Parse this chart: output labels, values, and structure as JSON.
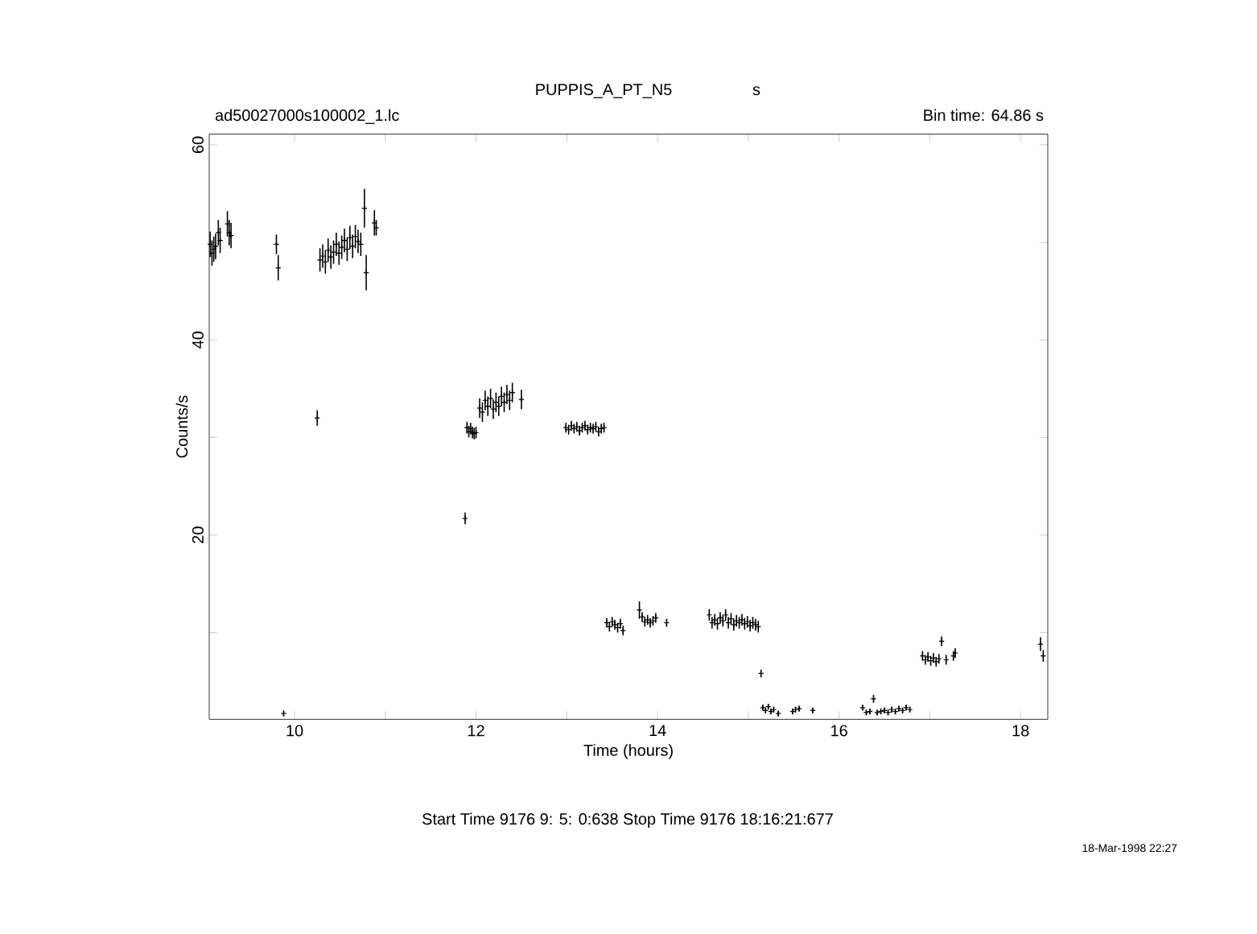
{
  "chart_data": {
    "type": "scatter",
    "title": "PUPPIS_A_PT_N5",
    "xlabel": "Time (hours)",
    "ylabel": "Counts/s",
    "annotations": [
      "ad50027000s100002_1.lc",
      "s",
      "Bin time:    64.86    s",
      "Start Time  9176  9: 5: 0:638    Stop Time  9176 18:16:21:677",
      "18-Mar-1998 22:27"
    ],
    "marker": "cross",
    "color": "#000000",
    "xlim": [
      9.06,
      18.3
    ],
    "ylim": [
      1.1,
      61.1
    ],
    "xticks": [
      10,
      {
        "value": 11,
        "label": null
      },
      12,
      {
        "value": 13,
        "label": null
      },
      14,
      {
        "value": 15,
        "label": null
      },
      16,
      {
        "value": 17,
        "label": null
      },
      18
    ],
    "yticks": [
      {
        "value": 10,
        "label": null
      },
      20,
      {
        "value": 30,
        "label": null
      },
      40,
      {
        "value": 50,
        "label": null
      },
      60
    ],
    "x": [
      9.07,
      9.09,
      9.11,
      9.13,
      9.16,
      9.18,
      9.26,
      9.28,
      9.3,
      9.8,
      9.82,
      9.88,
      10.25,
      10.28,
      10.31,
      10.34,
      10.37,
      10.4,
      10.43,
      10.46,
      10.49,
      10.52,
      10.55,
      10.58,
      10.61,
      10.64,
      10.67,
      10.7,
      10.73,
      10.77,
      10.79,
      10.88,
      10.9,
      11.88,
      11.9,
      11.92,
      11.94,
      11.96,
      11.98,
      12.0,
      12.04,
      12.07,
      12.1,
      12.13,
      12.16,
      12.19,
      12.22,
      12.25,
      12.28,
      12.31,
      12.34,
      12.37,
      12.4,
      12.5,
      12.99,
      13.02,
      13.05,
      13.08,
      13.11,
      13.14,
      13.17,
      13.2,
      13.23,
      13.26,
      13.29,
      13.32,
      13.35,
      13.38,
      13.41,
      13.44,
      13.47,
      13.5,
      13.53,
      13.56,
      13.59,
      13.62,
      13.8,
      13.83,
      13.86,
      13.89,
      13.92,
      13.95,
      13.98,
      14.1,
      14.57,
      14.6,
      14.63,
      14.66,
      14.69,
      14.72,
      14.75,
      14.78,
      14.81,
      14.84,
      14.87,
      14.9,
      14.93,
      14.96,
      14.99,
      15.02,
      15.05,
      15.08,
      15.11,
      15.14,
      15.16,
      15.19,
      15.22,
      15.25,
      15.28,
      15.33,
      15.49,
      15.52,
      15.56,
      15.71,
      16.26,
      16.3,
      16.34,
      16.38,
      16.42,
      16.46,
      16.5,
      16.54,
      16.58,
      16.62,
      16.66,
      16.7,
      16.74,
      16.78,
      16.92,
      16.95,
      16.98,
      17.01,
      17.04,
      17.07,
      17.1,
      17.13,
      17.18,
      17.26,
      17.28,
      18.22,
      18.25
    ],
    "values": [
      49.8,
      48.9,
      49.3,
      49.6,
      51.0,
      50.2,
      51.9,
      51.0,
      50.7,
      49.8,
      47.4,
      1.7,
      32.0,
      48.2,
      48.6,
      48.0,
      49.2,
      48.5,
      49.0,
      49.8,
      48.9,
      49.5,
      50.2,
      49.3,
      50.5,
      49.6,
      50.6,
      50.1,
      49.8,
      53.5,
      46.9,
      52.0,
      51.5,
      21.7,
      31.0,
      30.6,
      30.9,
      30.5,
      30.4,
      30.5,
      33.0,
      32.6,
      33.8,
      33.2,
      34.0,
      32.9,
      33.6,
      33.2,
      34.2,
      33.6,
      34.4,
      33.8,
      34.6,
      33.9,
      31.0,
      30.8,
      31.2,
      30.9,
      31.1,
      30.7,
      31.0,
      31.2,
      30.8,
      31.0,
      30.9,
      31.1,
      30.6,
      30.9,
      31.0,
      11.0,
      10.6,
      11.1,
      10.8,
      10.5,
      10.9,
      10.2,
      12.3,
      11.6,
      11.1,
      11.3,
      11.0,
      11.2,
      11.5,
      11.0,
      11.8,
      11.0,
      11.3,
      10.9,
      11.5,
      11.2,
      11.8,
      11.0,
      11.4,
      10.8,
      11.2,
      11.0,
      11.3,
      10.9,
      11.1,
      10.7,
      11.0,
      10.8,
      10.6,
      5.8,
      2.3,
      2.0,
      2.4,
      1.9,
      2.1,
      1.7,
      1.9,
      2.1,
      2.2,
      2.0,
      2.3,
      1.8,
      1.9,
      3.2,
      1.8,
      1.9,
      2.0,
      1.8,
      2.1,
      1.9,
      2.2,
      2.0,
      2.3,
      2.1,
      7.6,
      7.2,
      7.5,
      7.1,
      7.4,
      7.0,
      7.3,
      9.1,
      7.2,
      7.6,
      7.9,
      8.8,
      7.6
    ],
    "errors": [
      1.3,
      1.3,
      1.3,
      1.3,
      1.3,
      1.3,
      1.3,
      1.3,
      1.3,
      1.0,
      1.3,
      0.3,
      0.8,
      1.2,
      1.2,
      1.2,
      1.2,
      1.2,
      1.2,
      1.2,
      1.2,
      1.2,
      1.2,
      1.2,
      1.2,
      1.2,
      1.2,
      1.2,
      1.2,
      2.0,
      1.8,
      1.3,
      0.8,
      0.6,
      0.6,
      0.6,
      0.6,
      0.6,
      0.6,
      0.6,
      1.0,
      1.0,
      1.0,
      1.0,
      1.0,
      1.0,
      1.0,
      1.0,
      1.0,
      1.0,
      1.0,
      1.0,
      1.0,
      1.0,
      0.5,
      0.5,
      0.5,
      0.5,
      0.5,
      0.5,
      0.5,
      0.5,
      0.5,
      0.5,
      0.5,
      0.5,
      0.5,
      0.5,
      0.5,
      0.5,
      0.5,
      0.5,
      0.5,
      0.5,
      0.5,
      0.5,
      0.9,
      0.5,
      0.5,
      0.5,
      0.5,
      0.5,
      0.5,
      0.4,
      0.6,
      0.6,
      0.6,
      0.6,
      0.6,
      0.6,
      0.6,
      0.6,
      0.6,
      0.6,
      0.6,
      0.6,
      0.6,
      0.6,
      0.6,
      0.6,
      0.6,
      0.6,
      0.6,
      0.4,
      0.3,
      0.3,
      0.3,
      0.3,
      0.3,
      0.3,
      0.3,
      0.3,
      0.3,
      0.3,
      0.3,
      0.3,
      0.3,
      0.4,
      0.3,
      0.3,
      0.3,
      0.3,
      0.3,
      0.3,
      0.3,
      0.3,
      0.3,
      0.3,
      0.5,
      0.5,
      0.5,
      0.5,
      0.5,
      0.5,
      0.5,
      0.5,
      0.5,
      0.5,
      0.5,
      0.7,
      0.6
    ]
  }
}
